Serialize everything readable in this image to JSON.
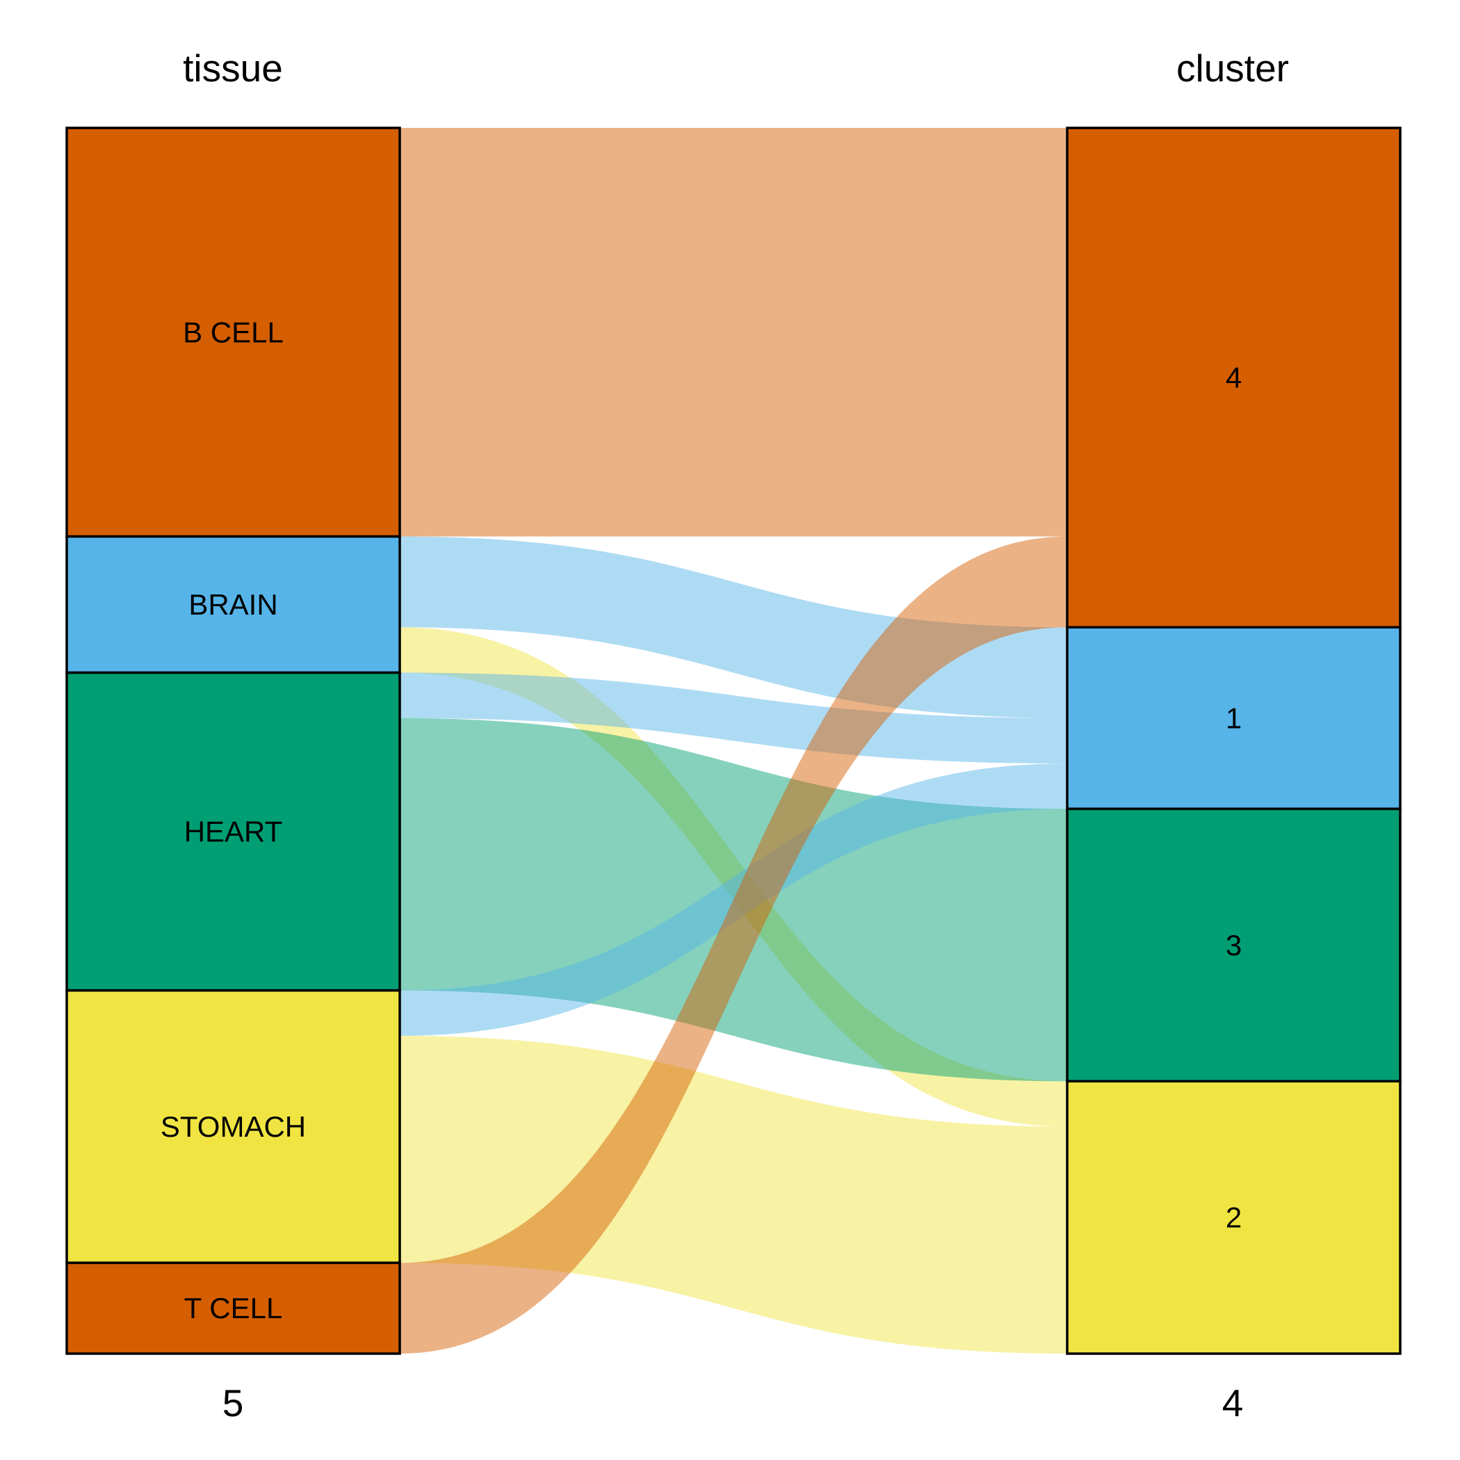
{
  "axes": [
    {
      "title": "tissue",
      "count": "5"
    },
    {
      "title": "cluster",
      "count": "4"
    }
  ],
  "colors": {
    "orange": "#D55E00",
    "blue": "#56B4E9",
    "green": "#009E73",
    "yellow": "#F0E442"
  },
  "flow_opacity": 0.48,
  "chart_data": {
    "type": "alluvial",
    "total": 27,
    "left_nodes": [
      {
        "label": "B CELL",
        "value": 9,
        "color": "orange"
      },
      {
        "label": "BRAIN",
        "value": 3,
        "color": "blue"
      },
      {
        "label": "HEART",
        "value": 7,
        "color": "green"
      },
      {
        "label": "STOMACH",
        "value": 6,
        "color": "yellow"
      },
      {
        "label": "T CELL",
        "value": 2,
        "color": "orange"
      }
    ],
    "right_nodes": [
      {
        "label": "4",
        "value": 11,
        "color": "orange"
      },
      {
        "label": "1",
        "value": 4,
        "color": "blue"
      },
      {
        "label": "3",
        "value": 6,
        "color": "green"
      },
      {
        "label": "2",
        "value": 6,
        "color": "yellow"
      }
    ],
    "flows": [
      {
        "from": "B CELL",
        "to": "4",
        "value": 9,
        "color": "orange"
      },
      {
        "from": "BRAIN",
        "to": "1",
        "value": 2,
        "color": "blue"
      },
      {
        "from": "BRAIN",
        "to": "2",
        "value": 1,
        "color": "yellow"
      },
      {
        "from": "HEART",
        "to": "1",
        "value": 1,
        "color": "blue"
      },
      {
        "from": "HEART",
        "to": "3",
        "value": 6,
        "color": "green"
      },
      {
        "from": "STOMACH",
        "to": "1",
        "value": 1,
        "color": "blue"
      },
      {
        "from": "STOMACH",
        "to": "2",
        "value": 5,
        "color": "yellow"
      },
      {
        "from": "T CELL",
        "to": "4",
        "value": 2,
        "color": "orange"
      }
    ]
  }
}
